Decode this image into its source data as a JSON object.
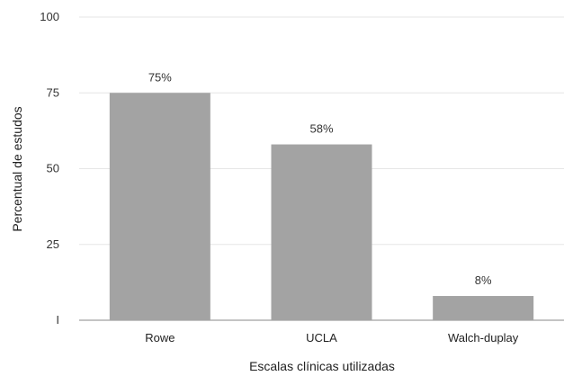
{
  "chart_data": {
    "type": "bar",
    "categories": [
      "Rowe",
      "UCLA",
      "Walch-duplay"
    ],
    "values": [
      75,
      58,
      8
    ],
    "data_labels": [
      "75%",
      "58%",
      "8%"
    ],
    "xlabel": "Escalas clínicas utilizadas",
    "ylabel": "Percentual de estudos",
    "ylim": [
      0,
      100
    ],
    "yticks": [
      {
        "value": 0,
        "label": "I"
      },
      {
        "value": 25,
        "label": "25"
      },
      {
        "value": 50,
        "label": "50"
      },
      {
        "value": 75,
        "label": "75"
      },
      {
        "value": 100,
        "label": "100"
      }
    ],
    "grid": true,
    "bar_color": "#a3a3a3",
    "grid_color": "#e6e6e6"
  }
}
